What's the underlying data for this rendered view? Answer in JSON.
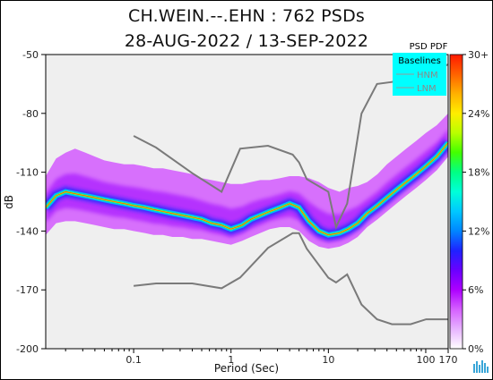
{
  "header": {
    "line1": "CH.WEIN.--.EHN : 762 PSDs",
    "line2": "28-AUG-2022 / 13-SEP-2022"
  },
  "colorbar": {
    "title": "PSD PDF",
    "tick_labels": [
      "30+",
      "24%",
      "18%",
      "12%",
      "6%",
      "0%"
    ],
    "colors": [
      "#ffffff",
      "#e7b3ff",
      "#d561ff",
      "#ad00ff",
      "#6a00ff",
      "#1f22ff",
      "#0086ff",
      "#00c8ff",
      "#00ffd9",
      "#00ff84",
      "#43ff00",
      "#b9ff00",
      "#ffee00",
      "#ffb000",
      "#ff6200",
      "#ff1a00"
    ]
  },
  "legend": {
    "title": "Baselines",
    "items": [
      "HNM",
      "LNM"
    ],
    "background": "#00ffff"
  },
  "chart_data": {
    "type": "heatmap",
    "xlabel": "Period (Sec)",
    "ylabel": "dB",
    "x_scale": "log",
    "xlim": [
      0.0125,
      170
    ],
    "ylim": [
      -200,
      -50
    ],
    "x_ticks": [
      0.1,
      1,
      10,
      100,
      170
    ],
    "x_tick_labels": [
      "0.1",
      "1",
      "10",
      "100",
      "170"
    ],
    "y_ticks": [
      -50,
      -80,
      -110,
      -140,
      -170,
      -200
    ],
    "y_tick_labels": [
      "-50",
      "-80",
      "-110",
      "-140",
      "-170",
      "-200"
    ],
    "background_color": "#efefef",
    "mode_curve": {
      "period": [
        0.0125,
        0.016,
        0.02,
        0.025,
        0.032,
        0.04,
        0.05,
        0.063,
        0.08,
        0.1,
        0.13,
        0.16,
        0.2,
        0.25,
        0.32,
        0.4,
        0.5,
        0.63,
        0.8,
        1.0,
        1.3,
        1.6,
        2.0,
        2.5,
        3.2,
        4.0,
        5.0,
        6.3,
        8.0,
        10,
        13,
        16,
        20,
        25,
        32,
        40,
        50,
        63,
        80,
        100,
        130,
        170
      ],
      "db": [
        -128,
        -122,
        -120,
        -121,
        -122,
        -123,
        -124,
        -125,
        -126,
        -127,
        -128,
        -129,
        -130,
        -131,
        -132,
        -133,
        -134,
        -136,
        -137,
        -139,
        -137,
        -134,
        -132,
        -130,
        -128,
        -126,
        -128,
        -135,
        -140,
        -142,
        -141,
        -139,
        -136,
        -131,
        -127,
        -123,
        -119,
        -115,
        -111,
        -107,
        -102,
        -95
      ]
    },
    "pdf_upper_edge_db": [
      -112,
      -103,
      -100,
      -98,
      -100,
      -102,
      -104,
      -105,
      -106,
      -106,
      -107,
      -108,
      -108,
      -109,
      -110,
      -111,
      -113,
      -114,
      -115,
      -116,
      -116,
      -115,
      -114,
      -114,
      -113,
      -112,
      -112,
      -113,
      -115,
      -118,
      -120,
      -118,
      -117,
      -115,
      -111,
      -106,
      -102,
      -98,
      -94,
      -90,
      -86,
      -80
    ],
    "pdf_lower_edge_db": [
      -142,
      -136,
      -135,
      -135,
      -136,
      -137,
      -138,
      -139,
      -139,
      -140,
      -141,
      -142,
      -142,
      -143,
      -143,
      -144,
      -144,
      -145,
      -146,
      -147,
      -145,
      -143,
      -141,
      -139,
      -138,
      -138,
      -140,
      -145,
      -148,
      -149,
      -148,
      -146,
      -143,
      -138,
      -134,
      -130,
      -126,
      -122,
      -118,
      -114,
      -109,
      -102
    ],
    "scatter_above_db_range": [
      -75,
      -100
    ],
    "NHNM": {
      "period": [
        0.1,
        0.17,
        0.4,
        0.8,
        1.24,
        2.4,
        4.3,
        5.0,
        6.0,
        10.0,
        12.0,
        15.6,
        21.9,
        31.6,
        45.0,
        70.0,
        101.0,
        154.0,
        170
      ],
      "db": [
        -91.5,
        -97.4,
        -110.5,
        -120.0,
        -98.0,
        -96.5,
        -101.0,
        -105.0,
        -113.5,
        -120.0,
        -138.0,
        -126.0,
        -80.1,
        -65.0,
        -64.0,
        -61.0,
        -59.0,
        -56.0,
        -55.0
      ]
    },
    "NLNM": {
      "period": [
        0.1,
        0.17,
        0.4,
        0.8,
        1.24,
        2.4,
        4.3,
        5.0,
        6.0,
        10.0,
        12.0,
        15.6,
        21.9,
        31.6,
        45.0,
        70.0,
        101.0,
        154.0,
        170
      ],
      "db": [
        -168.0,
        -166.7,
        -166.7,
        -169.2,
        -163.7,
        -148.6,
        -141.1,
        -141.1,
        -149.0,
        -163.8,
        -166.2,
        -162.1,
        -177.5,
        -185.0,
        -187.5,
        -187.5,
        -185.0,
        -185.0,
        -185.0
      ]
    }
  }
}
